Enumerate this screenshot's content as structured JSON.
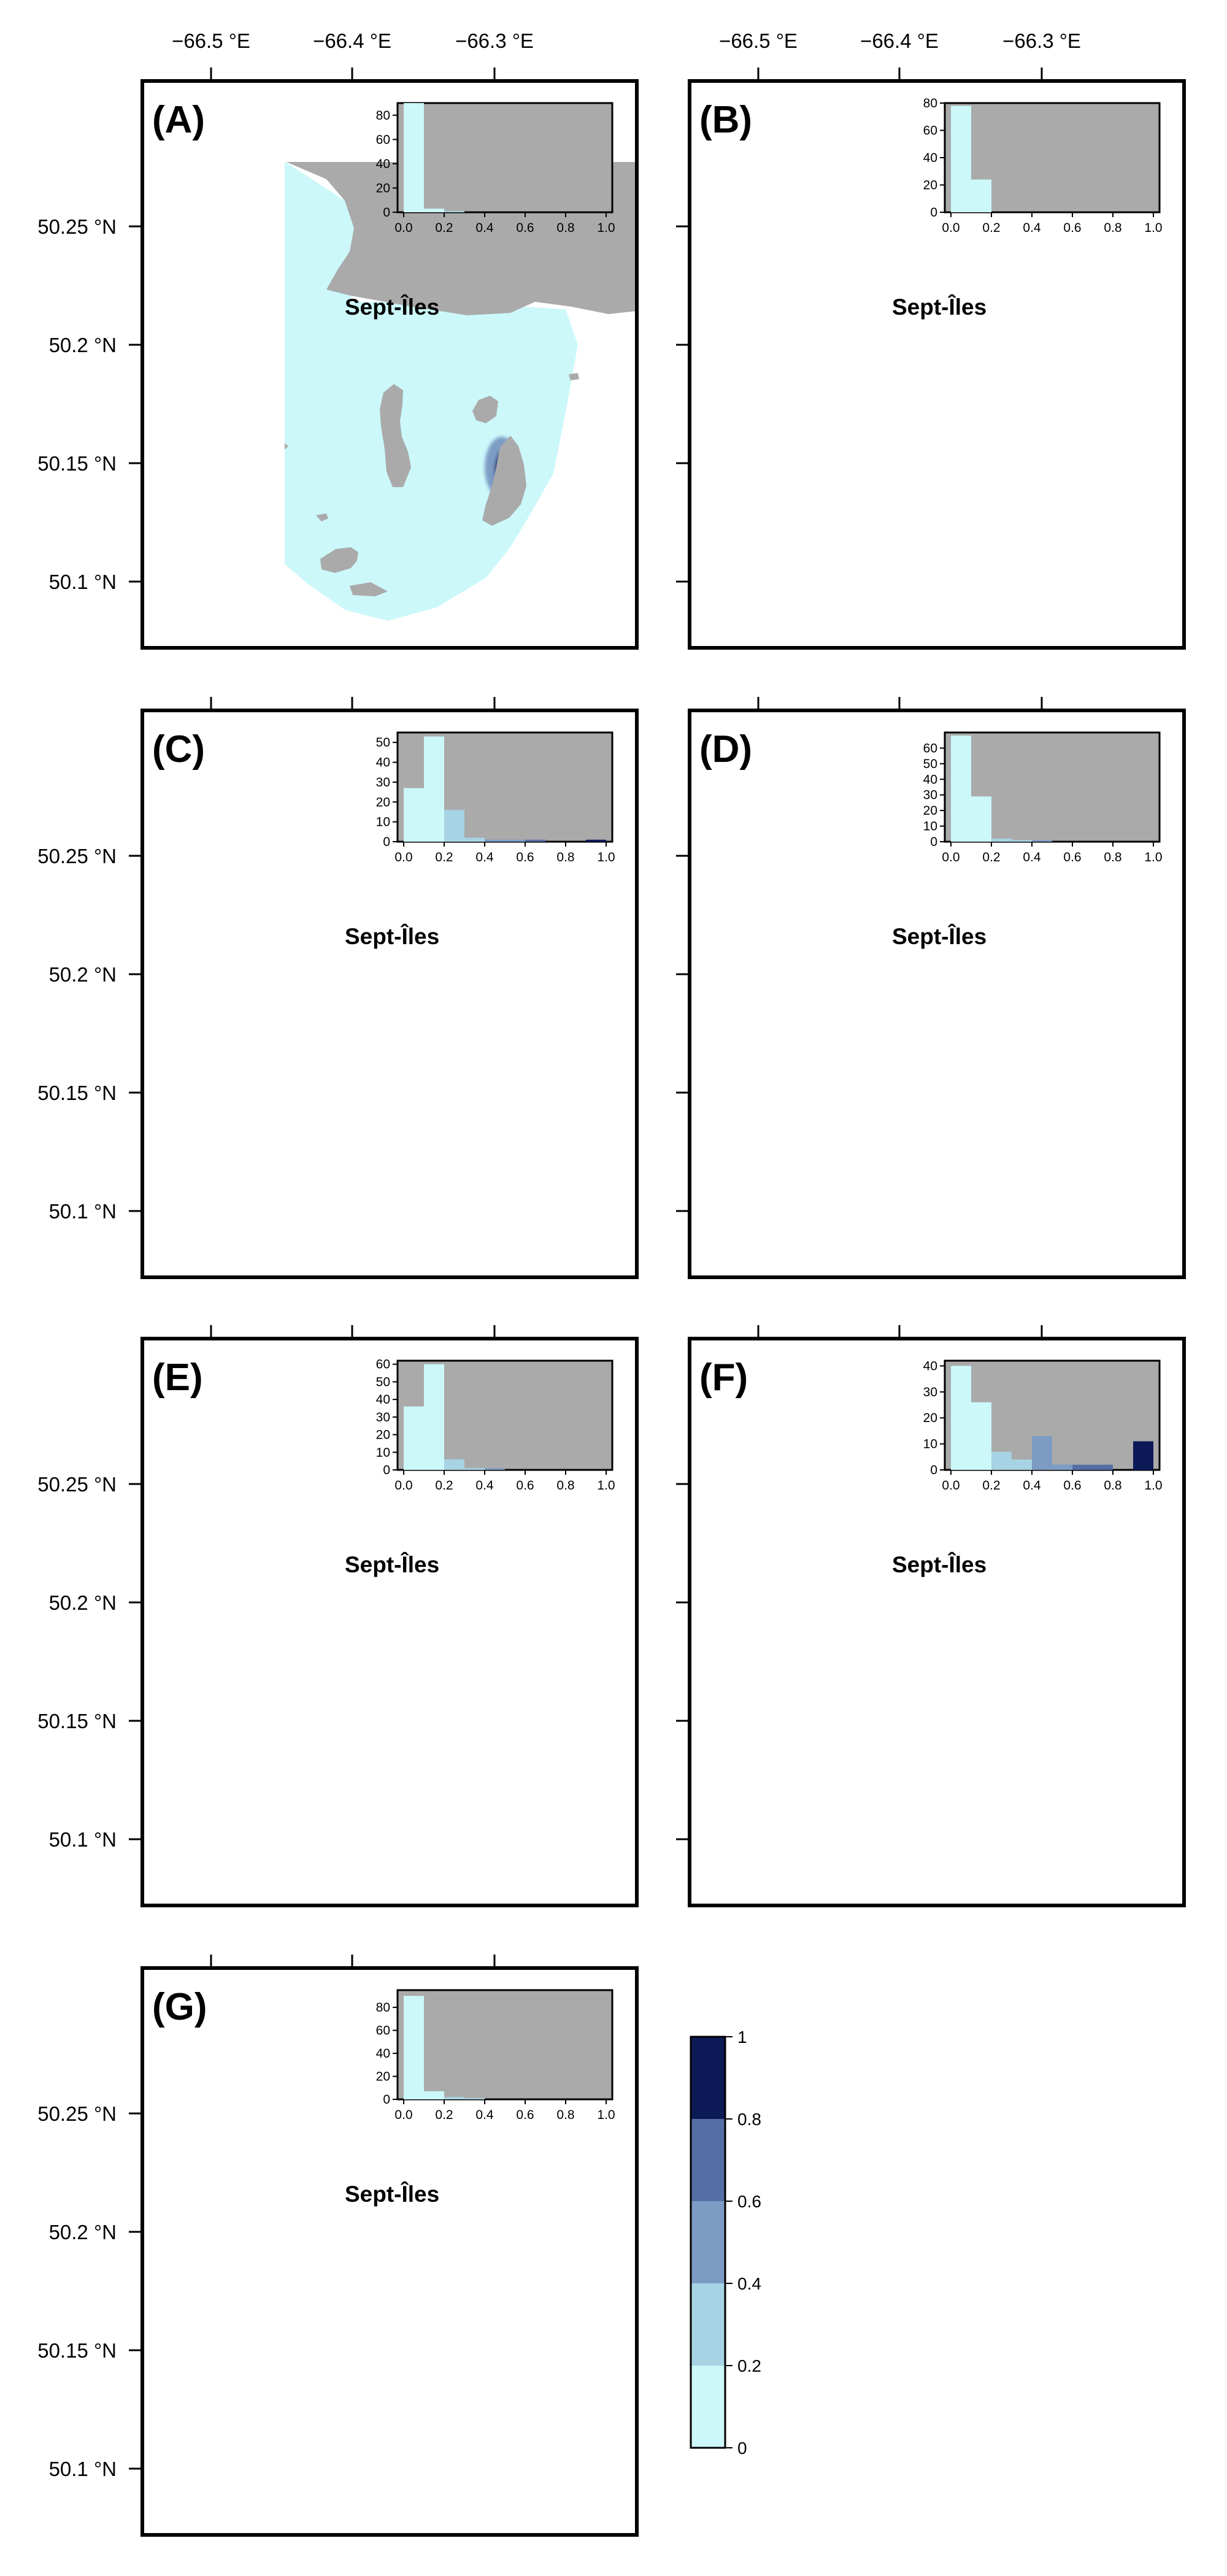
{
  "map": {
    "lon_labels": [
      "−66.5 °E",
      "−66.4 °E",
      "−66.3 °E"
    ],
    "lat_labels": [
      "50.25 °N",
      "50.2 °N",
      "50.15 °N",
      "50.1 °N"
    ],
    "city": "Sept-Îles",
    "land_color": "#aaaaaa",
    "water_color": "#ffffff"
  },
  "inset": {
    "x_ticks": [
      "0.0",
      "0.2",
      "0.4",
      "0.6",
      "0.8",
      "1.0"
    ]
  },
  "panels": [
    {
      "label": "(A)",
      "hist_ymax": 90,
      "y_ticks": [
        "0",
        "20",
        "40",
        "60",
        "80"
      ],
      "hist_values": [
        95,
        3,
        1,
        0,
        0,
        0,
        0,
        0,
        0,
        0
      ]
    },
    {
      "label": "(B)",
      "hist_ymax": 80,
      "y_ticks": [
        "0",
        "20",
        "40",
        "60",
        "80"
      ],
      "hist_values": [
        78,
        24,
        0,
        0,
        0,
        0,
        0,
        0,
        0,
        0
      ]
    },
    {
      "label": "(C)",
      "hist_ymax": 55,
      "y_ticks": [
        "0",
        "10",
        "20",
        "30",
        "40",
        "50"
      ],
      "hist_values": [
        27,
        53,
        16,
        2,
        1,
        1,
        1,
        0,
        0,
        1
      ]
    },
    {
      "label": "(D)",
      "hist_ymax": 70,
      "y_ticks": [
        "0",
        "10",
        "20",
        "30",
        "40",
        "50",
        "60"
      ],
      "hist_values": [
        68,
        29,
        2,
        1,
        1,
        0,
        0,
        0,
        0,
        0
      ]
    },
    {
      "label": "(E)",
      "hist_ymax": 62,
      "y_ticks": [
        "0",
        "10",
        "20",
        "30",
        "40",
        "50",
        "60"
      ],
      "hist_values": [
        36,
        60,
        6,
        1,
        1,
        0,
        0,
        0,
        0,
        0
      ]
    },
    {
      "label": "(F)",
      "hist_ymax": 42,
      "y_ticks": [
        "0",
        "10",
        "20",
        "30",
        "40"
      ],
      "hist_values": [
        40,
        26,
        7,
        4,
        13,
        2,
        2,
        2,
        0,
        11
      ]
    },
    {
      "label": "(G)",
      "hist_ymax": 95,
      "y_ticks": [
        "0",
        "20",
        "40",
        "60",
        "80"
      ],
      "hist_values": [
        90,
        7,
        2,
        1,
        0,
        0,
        0,
        0,
        0,
        0
      ]
    }
  ],
  "legend": {
    "labels": [
      "0",
      "0.2",
      "0.4",
      "0.6",
      "0.8",
      "1"
    ],
    "colors": [
      "#ccf8fa",
      "#a7d4e4",
      "#7d9cc4",
      "#556ea3",
      "#2b3e7a",
      "#0c1a58"
    ]
  }
}
